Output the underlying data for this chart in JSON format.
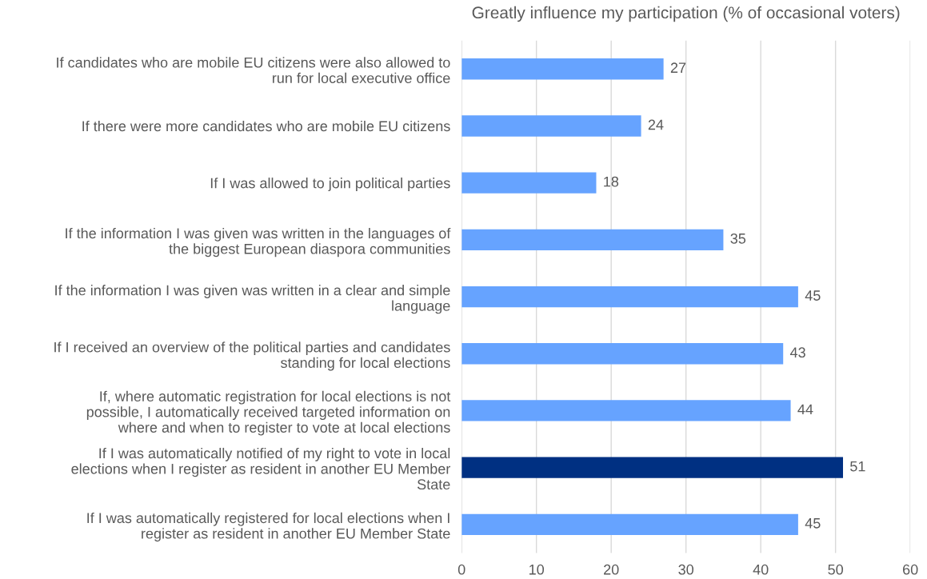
{
  "chart_data": {
    "type": "bar",
    "orientation": "horizontal",
    "title": "Greatly influence my participation (% of occasional voters)",
    "categories": [
      "If candidates who are mobile EU citizens were also allowed to\nrun for local executive office",
      "If there were more candidates who are mobile EU citizens",
      "If I was allowed to join political parties",
      "If the information I was given was written in the languages of\nthe biggest European diaspora communities",
      "If the information I was given was written in a clear and simple\nlanguage",
      "If I received an overview of the political parties and candidates\nstanding for local elections",
      "If, where automatic registration for local elections is not\npossible, I automatically received targeted information on\nwhere and when to register to vote at local elections",
      "If I was automatically notified of my right to vote in local\nelections when I register as resident in another EU Member\nState",
      "If I was automatically registered for local elections when I\nregister as resident in another EU Member State"
    ],
    "values": [
      27,
      24,
      18,
      35,
      45,
      43,
      44,
      51,
      45
    ],
    "colors": [
      "#66a3ff",
      "#66a3ff",
      "#66a3ff",
      "#66a3ff",
      "#66a3ff",
      "#66a3ff",
      "#66a3ff",
      "#003082",
      "#66a3ff"
    ],
    "xlim": [
      0,
      60
    ],
    "xticks": [
      0,
      10,
      20,
      30,
      40,
      50,
      60
    ],
    "grid": "x",
    "data_labels": true
  }
}
